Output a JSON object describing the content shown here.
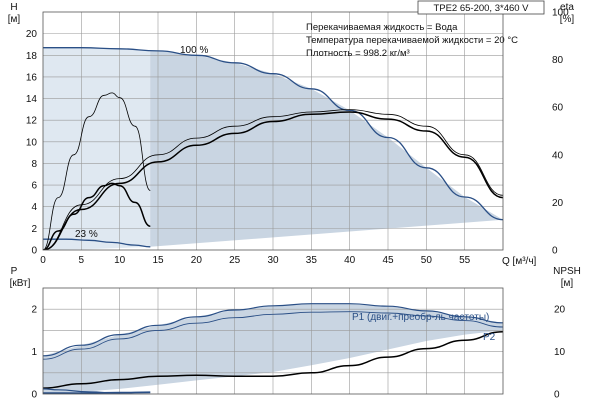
{
  "chart_data": [
    {
      "type": "line",
      "panel": "head-efficiency",
      "title": "TPE2 65-200, 3*460 V",
      "info": [
        "Перекачиваемая жидкость = Вода",
        "Температура перекачиваемой жидкости = 20 °C",
        "Плотность = 998.2 кг/м³"
      ],
      "xlabel": "Q [м³/ч]",
      "ylabel_left": [
        "H",
        "[м]"
      ],
      "ylabel_right": [
        "eta",
        "[%]"
      ],
      "xlim": [
        0,
        60
      ],
      "ylim_left": [
        0,
        22
      ],
      "ylim_right": [
        0,
        100
      ],
      "x_ticks": [
        "0",
        "5",
        "10",
        "15",
        "20",
        "25",
        "30",
        "35",
        "40",
        "45",
        "50",
        "55"
      ],
      "y_ticks_left": [
        "0",
        "2",
        "4",
        "6",
        "8",
        "10",
        "12",
        "14",
        "16",
        "18",
        "20"
      ],
      "y_ticks_right": [
        "0",
        "20",
        "40",
        "60",
        "80",
        "100"
      ],
      "annotations": [
        "100 %",
        "23 %"
      ],
      "operating_area": {
        "upper_x": [
          0,
          5,
          10,
          15,
          20,
          25,
          30,
          35,
          40,
          45,
          50,
          55,
          60
        ],
        "upper_y": [
          18.7,
          18.7,
          18.6,
          18.4,
          18.0,
          17.3,
          16.3,
          14.9,
          12.9,
          10.4,
          7.6,
          4.9,
          2.8
        ],
        "lower_x": [
          0,
          14,
          60
        ],
        "lower_y": [
          0,
          0.3,
          2.8
        ]
      },
      "series": [
        {
          "name": "100 %",
          "axis": "left",
          "x": [
            0,
            5,
            10,
            15,
            20,
            25,
            30,
            35,
            40,
            45,
            50,
            55,
            60
          ],
          "y": [
            18.7,
            18.7,
            18.6,
            18.4,
            18.0,
            17.3,
            16.3,
            14.9,
            12.9,
            10.4,
            7.6,
            4.9,
            2.8
          ]
        },
        {
          "name": "23 %",
          "axis": "left",
          "x": [
            0,
            3,
            6,
            9,
            12,
            14
          ],
          "y": [
            1.0,
            1.0,
            0.9,
            0.7,
            0.45,
            0.3
          ]
        },
        {
          "axis": "right",
          "x": [
            0,
            5,
            10,
            15,
            20,
            25,
            30,
            35,
            40,
            45,
            50,
            55,
            60
          ],
          "y": [
            0,
            19,
            30,
            40,
            47,
            52,
            56,
            58,
            59,
            57,
            52,
            40,
            23
          ]
        },
        {
          "axis": "right",
          "x": [
            0,
            5,
            10,
            15,
            20,
            25,
            30,
            35,
            40,
            45,
            50,
            55,
            60
          ],
          "y": [
            0,
            17,
            28,
            37,
            44,
            49,
            54,
            57,
            58,
            55,
            50,
            39,
            22
          ]
        },
        {
          "axis": "right",
          "x": [
            0,
            2,
            4,
            6,
            8,
            9,
            10,
            12,
            14
          ],
          "y": [
            0,
            22,
            40,
            56,
            65,
            66,
            64,
            52,
            25
          ]
        },
        {
          "axis": "right",
          "x": [
            0,
            2,
            4,
            6,
            8,
            9,
            10,
            12,
            14
          ],
          "y": [
            0,
            8,
            15,
            22,
            27,
            28,
            27,
            20,
            10
          ]
        }
      ]
    },
    {
      "type": "line",
      "panel": "power-npsh",
      "xlim": [
        0,
        60
      ],
      "ylabel_left": [
        "P",
        "[кВт]"
      ],
      "ylabel_right": [
        "NPSH",
        "[м]"
      ],
      "ylim_left": [
        0,
        2.5
      ],
      "ylim_right": [
        0,
        25
      ],
      "y_ticks_left": [
        "0",
        "1",
        "2"
      ],
      "y_ticks_right": [
        "0",
        "10",
        "20"
      ],
      "annotations": [
        "P1 (двиг.+преобр-ль частоты)",
        "P2"
      ],
      "band": {
        "upper_x": [
          0,
          5,
          10,
          15,
          20,
          25,
          30,
          35,
          40,
          45,
          50,
          55,
          60
        ],
        "upper_y": [
          0.9,
          1.15,
          1.4,
          1.62,
          1.82,
          1.98,
          2.08,
          2.13,
          2.13,
          2.07,
          1.96,
          1.82,
          1.68
        ],
        "lower_x": [
          0,
          5,
          10,
          15,
          20,
          25,
          30,
          35,
          40,
          45,
          50,
          55,
          60
        ],
        "lower_y": [
          0.02,
          0.05,
          0.12,
          0.22,
          0.32,
          0.42,
          0.52,
          0.68,
          0.85,
          1.05,
          1.25,
          1.4,
          1.5
        ]
      },
      "series": [
        {
          "name": "P1 (двиг.+преобр-ль частоты)",
          "axis": "left",
          "x": [
            0,
            5,
            10,
            15,
            20,
            25,
            30,
            35,
            40,
            45,
            50,
            55,
            60
          ],
          "y": [
            0.9,
            1.15,
            1.4,
            1.62,
            1.82,
            1.98,
            2.08,
            2.13,
            2.13,
            2.07,
            1.96,
            1.82,
            1.68
          ]
        },
        {
          "axis": "left",
          "x": [
            0,
            5,
            10,
            15,
            20,
            25,
            30,
            35,
            40,
            45,
            50,
            55,
            60
          ],
          "y": [
            0.82,
            1.06,
            1.3,
            1.5,
            1.67,
            1.8,
            1.88,
            1.93,
            1.94,
            1.91,
            1.84,
            1.73,
            1.58
          ]
        },
        {
          "name": "P2",
          "axis": "left",
          "x": [
            0,
            5,
            10,
            15,
            20,
            25,
            30,
            35,
            40,
            45,
            50,
            55,
            60
          ],
          "y": [
            0.14,
            0.24,
            0.34,
            0.42,
            0.44,
            0.42,
            0.42,
            0.5,
            0.67,
            0.87,
            1.07,
            1.27,
            1.47
          ]
        },
        {
          "axis": "left",
          "x": [
            0,
            5,
            10,
            14
          ],
          "y": [
            0.02,
            0.02,
            0.03,
            0.04
          ]
        },
        {
          "axis": "right",
          "x": [
            0,
            2,
            6,
            10
          ],
          "y": [
            1.2,
            1.0,
            0.5,
            0.2
          ]
        }
      ]
    }
  ],
  "colors": {
    "area_fill": "#c9d5e2",
    "area_light": "#e3ebf3",
    "curve_blue": "#2a4f86",
    "curve_black": "#000000",
    "grid": "#9a9a9a"
  }
}
